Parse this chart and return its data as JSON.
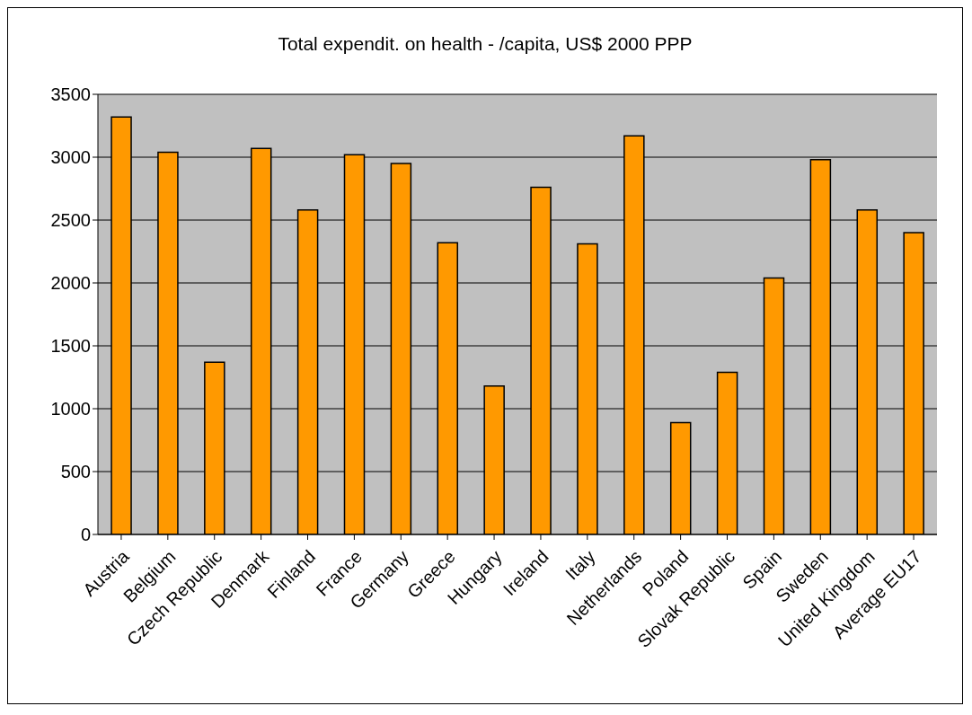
{
  "chart_data": {
    "type": "bar",
    "title": "Total expendit. on health - /capita, US$ 2000 PPP",
    "categories": [
      "Austria",
      "Belgium",
      "Czech Republic",
      "Denmark",
      "Finland",
      "France",
      "Germany",
      "Greece",
      "Hungary",
      "Ireland",
      "Italy",
      "Netherlands",
      "Poland",
      "Slovak Republic",
      "Spain",
      "Sweden",
      "United Kingdom",
      "Average EU17"
    ],
    "values": [
      3320,
      3040,
      1370,
      3070,
      2580,
      3020,
      2950,
      2320,
      1180,
      2760,
      2310,
      3170,
      890,
      1290,
      2040,
      2980,
      2580,
      2400
    ],
    "color": "#ff9900",
    "ylim": [
      0,
      3500
    ],
    "yticks": [
      0,
      500,
      1000,
      1500,
      2000,
      2500,
      3000,
      3500
    ],
    "grid": "y"
  }
}
